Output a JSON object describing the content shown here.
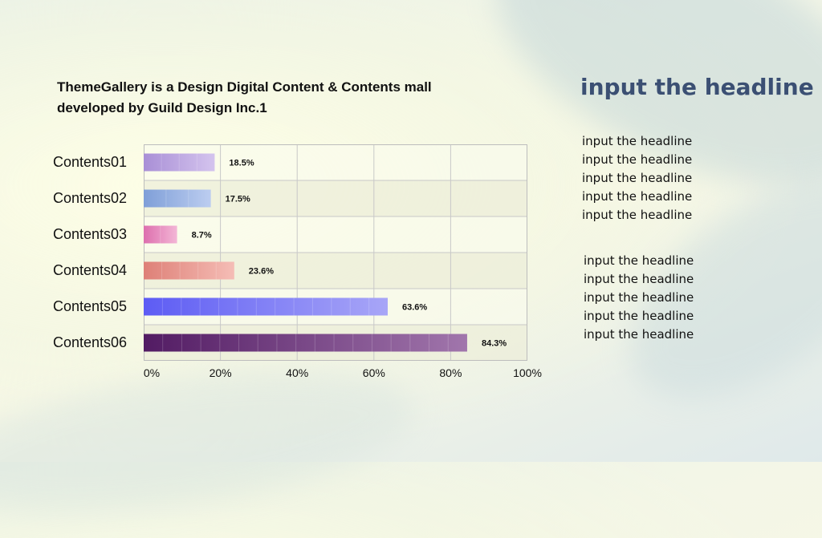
{
  "subtitle": {
    "line1": "ThemeGallery  is a Design Digital Content & Contents mall",
    "line2": "developed by Guild Design Inc.1"
  },
  "headline": "input the headline",
  "list1": [
    "input the headline",
    "input the headline",
    "input the headline",
    "input the headline",
    "input the headline"
  ],
  "list2": [
    "input the headline",
    "input the headline",
    "input the headline",
    "input the headline",
    "input the headline"
  ],
  "chart_data": {
    "type": "bar",
    "orientation": "horizontal",
    "categories": [
      "Contents01",
      "Contents02",
      "Contents03",
      "Contents04",
      "Contents05",
      "Contents06"
    ],
    "values": [
      18.5,
      17.5,
      8.7,
      23.6,
      63.6,
      84.3
    ],
    "value_labels": [
      "18.5%",
      "17.5%",
      "8.7%",
      "23.6%",
      "63.6%",
      "84.3%"
    ],
    "xlim": [
      0,
      100
    ],
    "x_ticks": [
      "0%",
      "20%",
      "40%",
      "60%",
      "80%",
      "100%"
    ],
    "grid": true,
    "bar_colors": [
      [
        "#a98fd6",
        "#d4c4ee"
      ],
      [
        "#7f9fd8",
        "#bccdf0"
      ],
      [
        "#dd6fae",
        "#f3b6d6"
      ],
      [
        "#de8077",
        "#f5bdb6"
      ],
      [
        "#5d5cf4",
        "#a8a6f7"
      ],
      [
        "#521b63",
        "#a176ac"
      ]
    ]
  }
}
